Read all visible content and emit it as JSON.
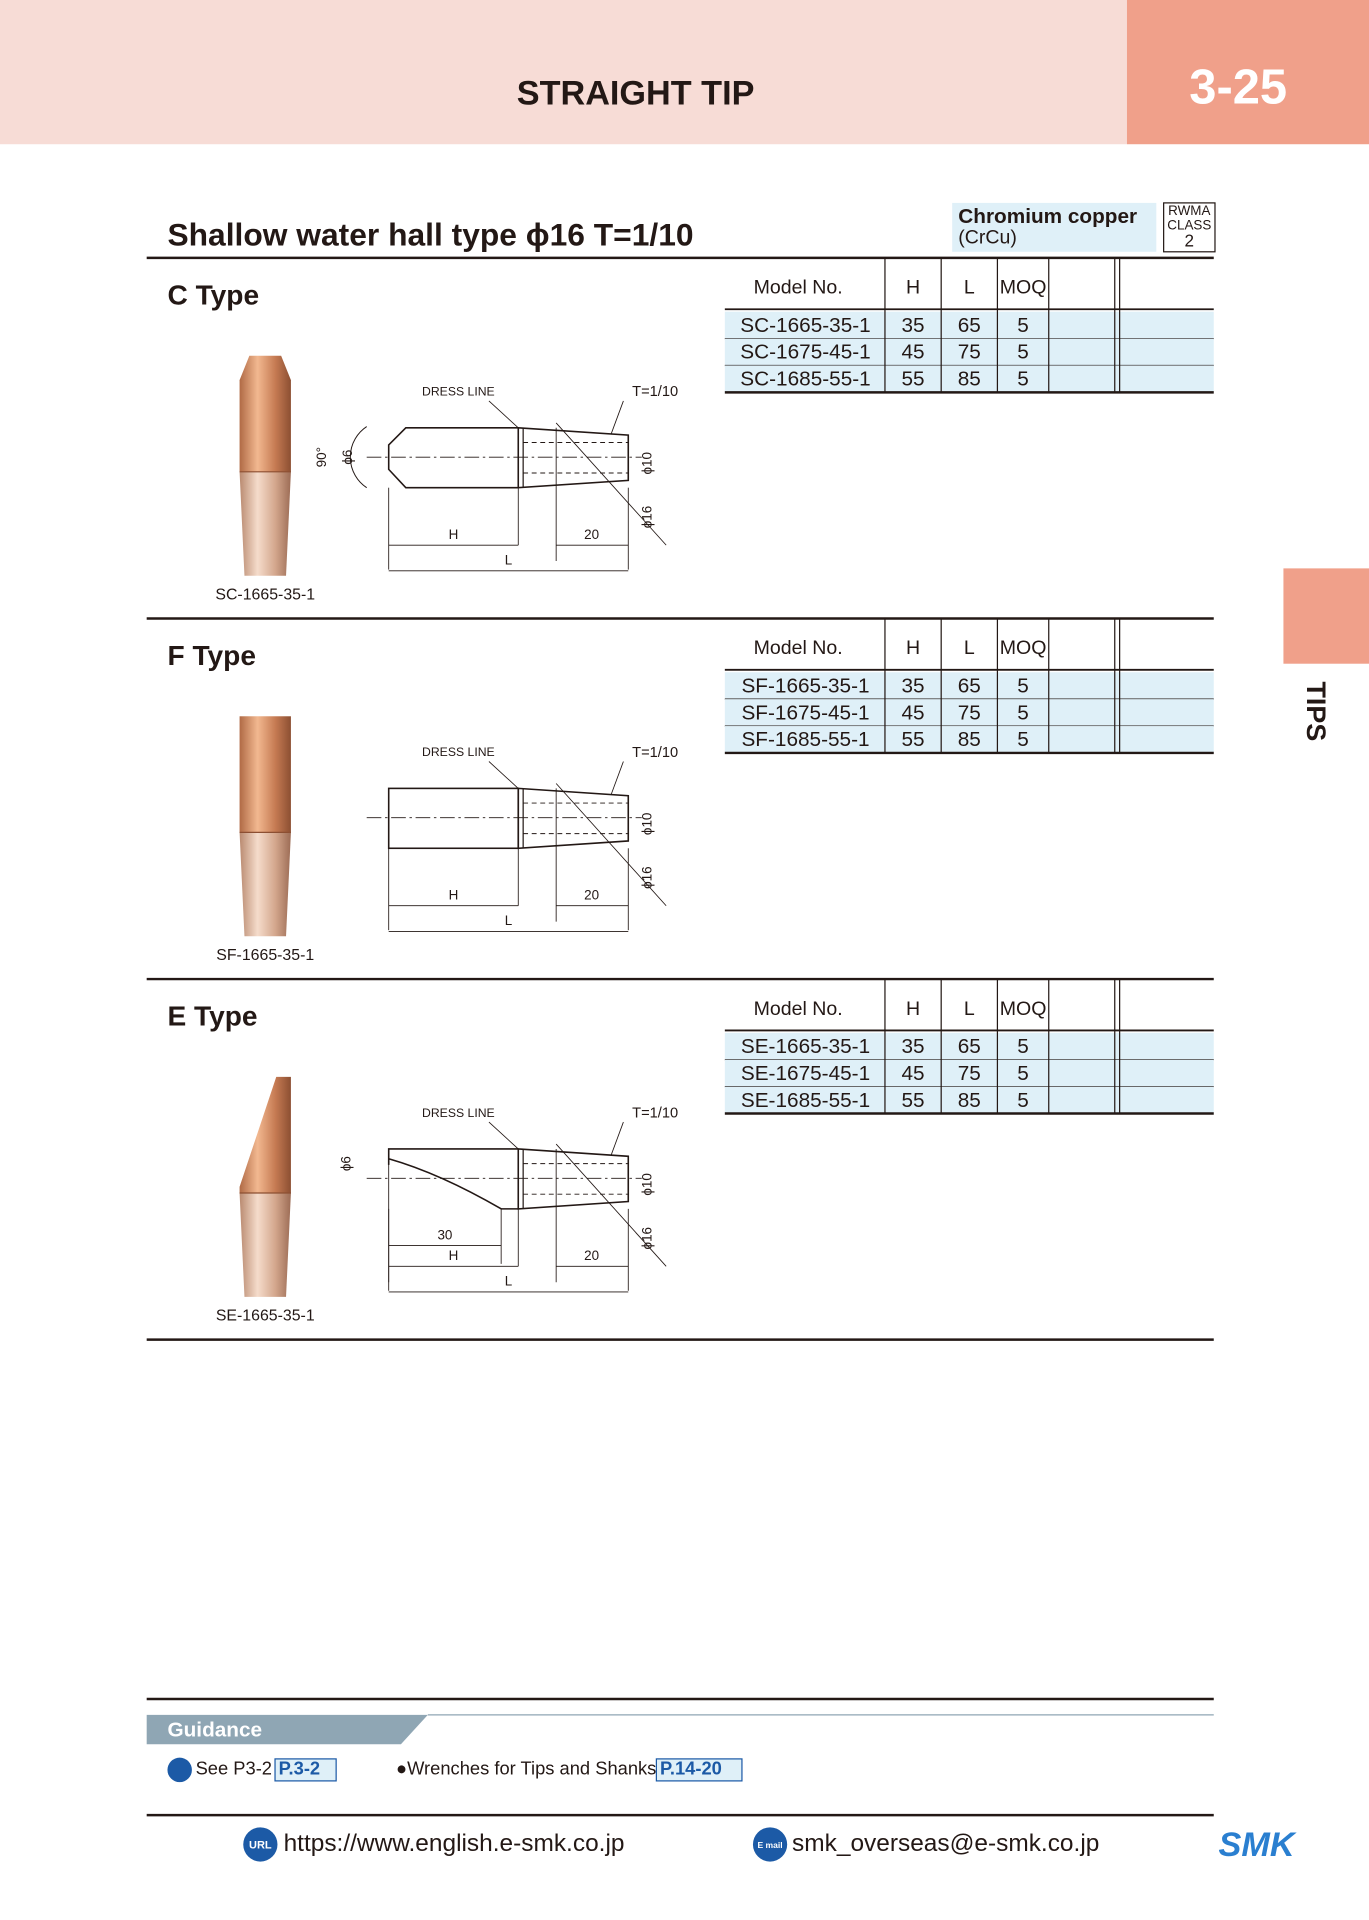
{
  "header": {
    "title": "STRAIGHT TIP",
    "page": "3-25"
  },
  "side_tab": "TIPS",
  "subtitle": "Shallow water hall type ϕ16  T=1/10",
  "material": {
    "name": "Chromium copper",
    "formula": "(CrCu)",
    "rwma": "RWMA",
    "class_label": "CLASS",
    "class": "2"
  },
  "table_header": [
    "Model No.",
    "H",
    "L",
    "MOQ"
  ],
  "drawing_labels": {
    "dress_line": "DRESS LINE",
    "taper": "T=1/10",
    "h": "H",
    "l": "L",
    "tip_len": 20,
    "d10": "ϕ10",
    "d16": "ϕ16"
  },
  "sections": [
    {
      "kind": "C",
      "title": "C Type",
      "caption": "SC-1665-35-1",
      "extra": {
        "d6": "ϕ6",
        "angle": "90°"
      },
      "rows": [
        [
          "SC-1665-35-1",
          35,
          65,
          5
        ],
        [
          "SC-1675-45-1",
          45,
          75,
          5
        ],
        [
          "SC-1685-55-1",
          55,
          85,
          5
        ]
      ]
    },
    {
      "kind": "F",
      "title": "F Type",
      "caption": "SF-1665-35-1",
      "extra": {},
      "rows": [
        [
          "SF-1665-35-1",
          35,
          65,
          5
        ],
        [
          "SF-1675-45-1",
          45,
          75,
          5
        ],
        [
          "SF-1685-55-1",
          55,
          85,
          5
        ]
      ]
    },
    {
      "kind": "E",
      "title": "E Type",
      "caption": "SE-1665-35-1",
      "extra": {
        "d6": "ϕ6",
        "len30": 30
      },
      "rows": [
        [
          "SE-1665-35-1",
          35,
          65,
          5
        ],
        [
          "SE-1675-45-1",
          45,
          75,
          5
        ],
        [
          "SE-1685-55-1",
          55,
          85,
          5
        ]
      ]
    }
  ],
  "guidance": {
    "title": "Guidance",
    "items": [
      {
        "text": "See P3-2",
        "ref": "P.3-2"
      },
      {
        "text": "●Wrenches for Tips and Shanks",
        "ref": "P.14-20"
      }
    ]
  },
  "footer": {
    "url": "https://www.english.e-smk.co.jp",
    "email": "smk_overseas@e-smk.co.jp",
    "url_icon": "URL",
    "email_icon": "E mail",
    "logo": "SMK"
  }
}
